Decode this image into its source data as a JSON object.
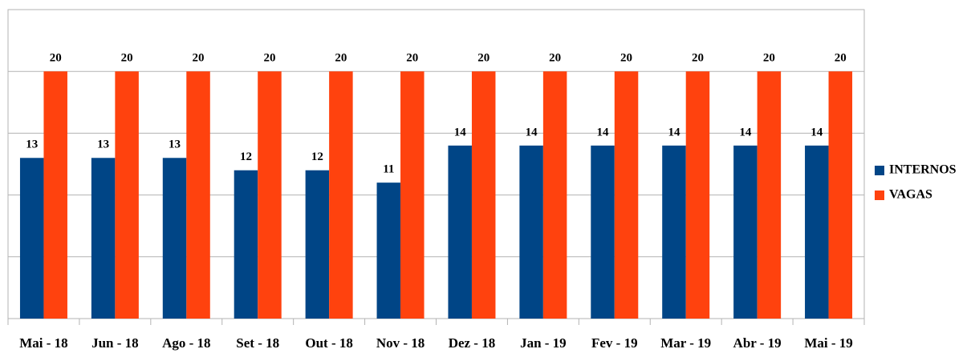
{
  "chart_data": {
    "type": "bar",
    "categories": [
      "Mai - 18",
      "Jun - 18",
      "Ago - 18",
      "Set - 18",
      "Out - 18",
      "Nov - 18",
      "Dez - 18",
      "Jan - 19",
      "Fev - 19",
      "Mar - 19",
      "Abr - 19",
      "Mai - 19"
    ],
    "series": [
      {
        "name": "INTERNOS",
        "color": "#004586",
        "values": [
          13,
          13,
          13,
          12,
          12,
          11,
          14,
          14,
          14,
          14,
          14,
          14
        ]
      },
      {
        "name": "VAGAS",
        "color": "#ff420e",
        "values": [
          20,
          20,
          20,
          20,
          20,
          20,
          20,
          20,
          20,
          20,
          20,
          20
        ]
      }
    ],
    "ylim": [
      0,
      25
    ],
    "yticks": [
      0,
      5,
      10,
      15,
      20,
      25
    ],
    "grid": true,
    "legend": "right"
  }
}
